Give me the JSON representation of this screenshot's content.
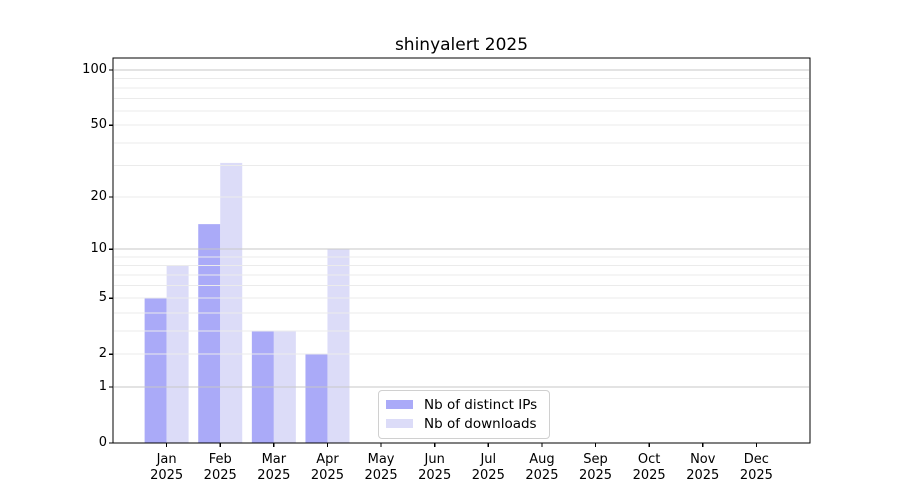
{
  "title": "shinyalert 2025",
  "chart_data": {
    "type": "bar",
    "title": "shinyalert 2025",
    "scale": "log1p",
    "categories": [
      "Jan",
      "Feb",
      "Mar",
      "Apr",
      "May",
      "Jun",
      "Jul",
      "Aug",
      "Sep",
      "Oct",
      "Nov",
      "Dec"
    ],
    "year_label": "2025",
    "series": [
      {
        "name": "Nb of distinct IPs",
        "color": "#aaaaf8",
        "values": [
          5,
          14,
          3,
          2,
          0,
          0,
          0,
          0,
          0,
          0,
          0,
          0
        ]
      },
      {
        "name": "Nb of downloads",
        "color": "#dcdcf8",
        "values": [
          8,
          31,
          3,
          10,
          0,
          0,
          0,
          0,
          0,
          0,
          0,
          0
        ]
      }
    ],
    "yticks": [
      0,
      1,
      2,
      5,
      10,
      20,
      50,
      100
    ],
    "ylim": [
      0,
      116
    ],
    "grid": {
      "on": true,
      "major": [
        1,
        10,
        100
      ],
      "minor": [
        2,
        3,
        4,
        5,
        6,
        7,
        8,
        9,
        20,
        30,
        40,
        50,
        60,
        70,
        80,
        90
      ]
    },
    "legend_position": "inside-bottom-center"
  },
  "colors": {
    "grid_major": "#c7c7c7",
    "grid_minor": "#ebebeb",
    "axis": "#000000",
    "background": "#ffffff",
    "legend_border": "#d0d0d0"
  }
}
